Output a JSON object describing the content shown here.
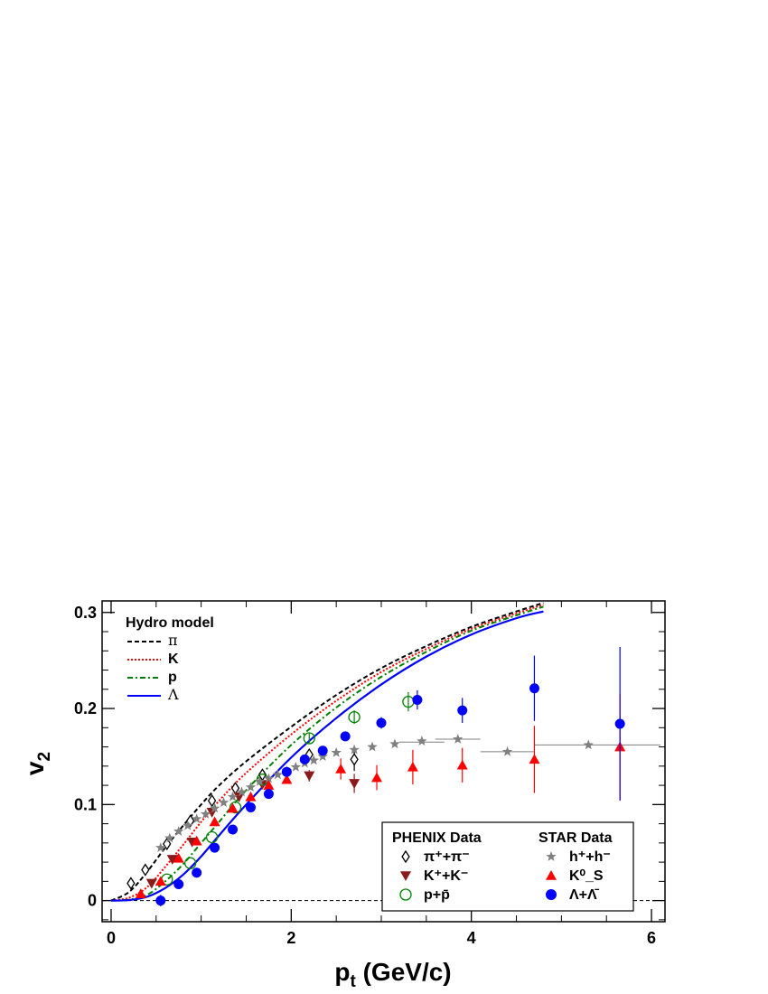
{
  "chart_data": {
    "type": "scatter",
    "xlabel": "p_t (GeV/c)",
    "xlabel_main": "p",
    "xlabel_sub": "t",
    "xlabel_rest": " (GeV/c)",
    "ylabel": "v_2",
    "ylabel_main": "v",
    "ylabel_sub": "2",
    "xlim": [
      -0.1,
      6.15
    ],
    "ylim": [
      -0.022,
      0.312
    ],
    "xticks": [
      0,
      2,
      4,
      6
    ],
    "xtick_labels": [
      "0",
      "2",
      "4",
      "6"
    ],
    "yticks": [
      0,
      0.1,
      0.2,
      0.3
    ],
    "ytick_labels": [
      "0",
      "0.1",
      "0.2",
      "0.3"
    ],
    "zero_line": true,
    "grid": false,
    "model_legend": {
      "title": "Hydro model",
      "placement": "top-left",
      "entries": [
        "π",
        "K",
        "p",
        "Λ"
      ]
    },
    "data_legend": {
      "placement": "bottom-right",
      "phenix_title": "PHENIX Data",
      "star_title": "STAR Data",
      "phenix_entries": [
        "π⁺+π⁻",
        "K⁺+K⁻",
        "p+p̄"
      ],
      "star_entries": [
        "h⁺+h⁻",
        "K⁰_S",
        "Λ+Λ̄"
      ]
    },
    "curves": [
      {
        "name": "π",
        "color": "#000000",
        "dash": "5,3",
        "x": [
          0,
          0.2,
          0.4,
          0.6,
          0.8,
          1.0,
          1.2,
          1.5,
          2.0,
          2.5,
          3.0,
          3.5,
          4.0,
          4.5,
          4.8
        ],
        "y": [
          0,
          0.009,
          0.03,
          0.055,
          0.078,
          0.1,
          0.12,
          0.145,
          0.181,
          0.214,
          0.242,
          0.265,
          0.285,
          0.301,
          0.31
        ]
      },
      {
        "name": "K",
        "color": "#ff0000",
        "dash": "2,2",
        "x": [
          0,
          0.2,
          0.4,
          0.6,
          0.8,
          1.0,
          1.2,
          1.5,
          2.0,
          2.5,
          3.0,
          3.5,
          4.0,
          4.5,
          4.8
        ],
        "y": [
          0,
          0.003,
          0.014,
          0.035,
          0.058,
          0.082,
          0.104,
          0.133,
          0.173,
          0.208,
          0.238,
          0.262,
          0.283,
          0.299,
          0.308
        ]
      },
      {
        "name": "p",
        "color": "#008000",
        "dash": "6,3,2,3",
        "x": [
          0,
          0.2,
          0.4,
          0.6,
          0.8,
          1.0,
          1.2,
          1.5,
          2.0,
          2.5,
          3.0,
          3.5,
          4.0,
          4.5,
          4.8
        ],
        "y": [
          0,
          0.001,
          0.006,
          0.02,
          0.038,
          0.06,
          0.082,
          0.115,
          0.162,
          0.201,
          0.233,
          0.259,
          0.281,
          0.297,
          0.306
        ]
      },
      {
        "name": "Λ",
        "color": "#0000ff",
        "dash": "",
        "x": [
          0,
          0.2,
          0.4,
          0.6,
          0.8,
          1.0,
          1.2,
          1.5,
          2.0,
          2.5,
          3.0,
          3.5,
          4.0,
          4.5,
          4.8
        ],
        "y": [
          0,
          0.0005,
          0.004,
          0.013,
          0.027,
          0.046,
          0.068,
          0.1,
          0.149,
          0.19,
          0.225,
          0.254,
          0.277,
          0.294,
          0.301
        ]
      }
    ],
    "series": [
      {
        "name": "π⁺+π⁻",
        "group": "PHENIX",
        "marker": "diamond-open",
        "color": "#000000",
        "points": [
          [
            0.22,
            0.018,
            0
          ],
          [
            0.38,
            0.032,
            0
          ],
          [
            0.62,
            0.059,
            0
          ],
          [
            0.88,
            0.083,
            0
          ],
          [
            1.12,
            0.104,
            0
          ],
          [
            1.38,
            0.117,
            0
          ],
          [
            1.68,
            0.131,
            0
          ],
          [
            2.2,
            0.152,
            0
          ],
          [
            2.7,
            0.147,
            0.012
          ]
        ]
      },
      {
        "name": "K⁺+K⁻",
        "group": "PHENIX",
        "marker": "triangle-down",
        "color": "#8b1a1a",
        "points": [
          [
            0.45,
            0.018,
            0
          ],
          [
            0.68,
            0.043,
            0
          ],
          [
            0.9,
            0.061,
            0
          ],
          [
            1.12,
            0.092,
            0
          ],
          [
            1.42,
            0.108,
            0
          ],
          [
            1.68,
            0.121,
            0
          ],
          [
            2.2,
            0.13,
            0.006
          ],
          [
            2.7,
            0.122,
            0.01
          ]
        ]
      },
      {
        "name": "p+p̄",
        "group": "PHENIX",
        "marker": "circle-open",
        "color": "#008000",
        "points": [
          [
            0.62,
            0.022,
            0
          ],
          [
            0.88,
            0.039,
            0
          ],
          [
            1.12,
            0.066,
            0
          ],
          [
            1.38,
            0.097,
            0
          ],
          [
            1.68,
            0.126,
            0
          ],
          [
            2.2,
            0.169,
            0.005
          ],
          [
            2.7,
            0.191,
            0.007
          ],
          [
            3.3,
            0.207,
            0.01
          ]
        ]
      },
      {
        "name": "h⁺+h⁻",
        "group": "STAR",
        "marker": "star",
        "color": "#808080",
        "points": [
          [
            0.55,
            0.055,
            0
          ],
          [
            0.65,
            0.065,
            0
          ],
          [
            0.75,
            0.072,
            0
          ],
          [
            0.85,
            0.078,
            0
          ],
          [
            0.95,
            0.085,
            0
          ],
          [
            1.05,
            0.09,
            0
          ],
          [
            1.15,
            0.096,
            0
          ],
          [
            1.25,
            0.102,
            0
          ],
          [
            1.35,
            0.108,
            0
          ],
          [
            1.45,
            0.113,
            0
          ],
          [
            1.55,
            0.118,
            0
          ],
          [
            1.65,
            0.124,
            0
          ],
          [
            1.75,
            0.127,
            0
          ],
          [
            1.85,
            0.131,
            0
          ],
          [
            1.95,
            0.135,
            0
          ],
          [
            2.05,
            0.139,
            0
          ],
          [
            2.15,
            0.143,
            0
          ],
          [
            2.25,
            0.146,
            0
          ],
          [
            2.35,
            0.15,
            0
          ],
          [
            2.5,
            0.154,
            0
          ],
          [
            2.7,
            0.157,
            0
          ],
          [
            2.9,
            0.16,
            0
          ],
          [
            3.15,
            0.163,
            0
          ],
          [
            3.45,
            0.166,
            0
          ],
          [
            3.85,
            0.168,
            0
          ],
          [
            4.4,
            0.155,
            0
          ],
          [
            5.3,
            0.162,
            0
          ]
        ],
        "xbins": [
          [
            3.2,
            3.7
          ],
          [
            3.6,
            4.1
          ],
          [
            4.1,
            4.7
          ],
          [
            4.7,
            6.1
          ]
        ]
      },
      {
        "name": "K⁰_S",
        "group": "STAR",
        "marker": "triangle-up",
        "color": "#ff0000",
        "points": [
          [
            0.33,
            0.007,
            0
          ],
          [
            0.55,
            0.02,
            0
          ],
          [
            0.75,
            0.044,
            0
          ],
          [
            0.95,
            0.062,
            0
          ],
          [
            1.15,
            0.082,
            0
          ],
          [
            1.35,
            0.096,
            0
          ],
          [
            1.55,
            0.108,
            0
          ],
          [
            1.75,
            0.12,
            0
          ],
          [
            1.95,
            0.126,
            0
          ],
          [
            2.55,
            0.137,
            0.011
          ],
          [
            2.95,
            0.128,
            0.013
          ],
          [
            3.35,
            0.139,
            0.018
          ],
          [
            3.9,
            0.141,
            0.018
          ],
          [
            4.7,
            0.147,
            0.035
          ],
          [
            5.65,
            0.16,
            0.055
          ]
        ]
      },
      {
        "name": "Λ+Λ̄",
        "group": "STAR",
        "marker": "circle",
        "color": "#0000ff",
        "points": [
          [
            0.55,
            0.0,
            0.006
          ],
          [
            0.75,
            0.017,
            0
          ],
          [
            0.95,
            0.029,
            0
          ],
          [
            1.15,
            0.055,
            0
          ],
          [
            1.35,
            0.074,
            0
          ],
          [
            1.55,
            0.097,
            0
          ],
          [
            1.75,
            0.111,
            0
          ],
          [
            1.95,
            0.134,
            0
          ],
          [
            2.15,
            0.147,
            0
          ],
          [
            2.35,
            0.156,
            0
          ],
          [
            2.6,
            0.171,
            0
          ],
          [
            3.0,
            0.185,
            0.006
          ],
          [
            3.4,
            0.209,
            0.01
          ],
          [
            3.9,
            0.198,
            0.013
          ],
          [
            4.7,
            0.221,
            0.034
          ],
          [
            5.65,
            0.184,
            0.08
          ]
        ]
      }
    ]
  }
}
